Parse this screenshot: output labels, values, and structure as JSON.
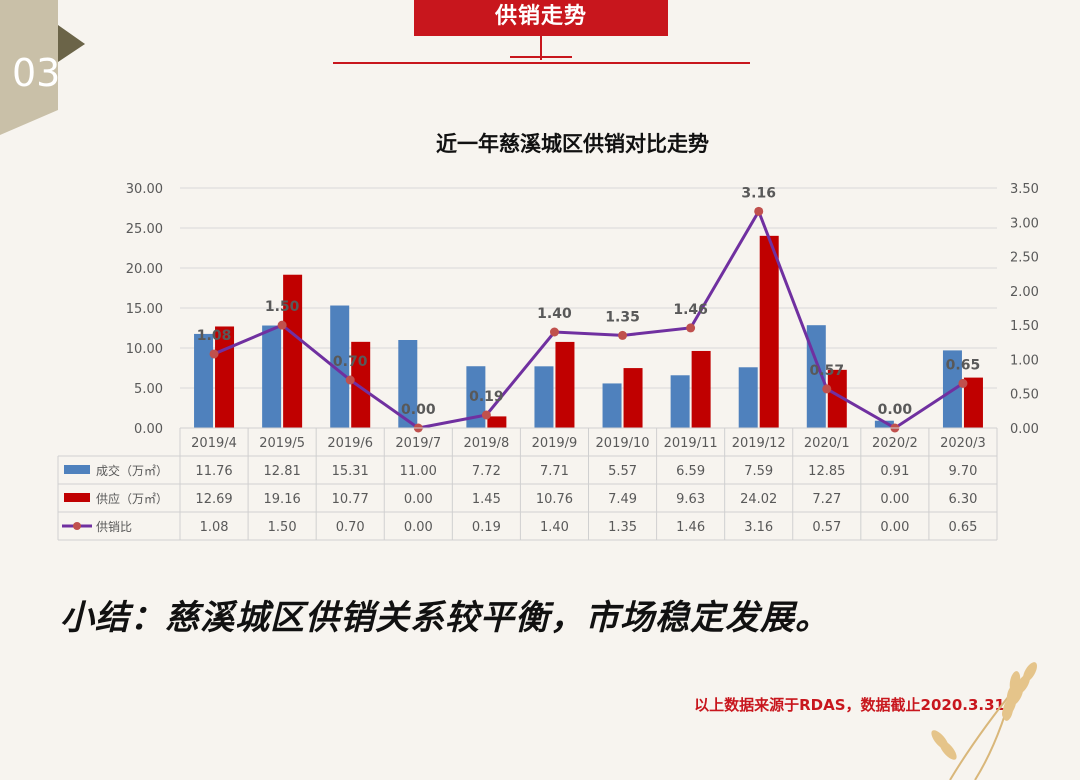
{
  "header": {
    "title": "供销走势",
    "section_number": "03"
  },
  "summary": "小结：慈溪城区供销关系较平衡，市场稳定发展。",
  "source_note": "以上数据来源于RDAS，数据截止2020.3.31",
  "colors": {
    "accent": "#c8161d",
    "deal": "#4f81bd",
    "supply": "#c00000",
    "ratio": "#7030a0",
    "marker": "#c0504d"
  },
  "chart_data": {
    "type": "bar",
    "title": "近一年慈溪城区供销对比走势",
    "categories": [
      "2019/4",
      "2019/5",
      "2019/6",
      "2019/7",
      "2019/8",
      "2019/9",
      "2019/10",
      "2019/11",
      "2019/12",
      "2020/1",
      "2020/2",
      "2020/3"
    ],
    "y_left": {
      "ylim": [
        0,
        30
      ],
      "ticks": [
        "0.00",
        "5.00",
        "10.00",
        "15.00",
        "20.00",
        "25.00",
        "30.00"
      ]
    },
    "y_right": {
      "ylim": [
        0,
        3.5
      ],
      "ticks": [
        "0.00",
        "0.50",
        "1.00",
        "1.50",
        "2.00",
        "2.50",
        "3.00",
        "3.50"
      ]
    },
    "series": [
      {
        "name": "成交（万㎡）",
        "kind": "bar",
        "axis": "left",
        "values": [
          11.76,
          12.81,
          15.31,
          11.0,
          7.72,
          7.71,
          5.57,
          6.59,
          7.59,
          12.85,
          0.91,
          9.7
        ],
        "labels": [
          "11.76",
          "12.81",
          "15.31",
          "11.00",
          "7.72",
          "7.71",
          "5.57",
          "6.59",
          "7.59",
          "12.85",
          "0.91",
          "9.70"
        ]
      },
      {
        "name": "供应（万㎡）",
        "kind": "bar",
        "axis": "left",
        "values": [
          12.69,
          19.16,
          10.77,
          0.0,
          1.45,
          10.76,
          7.49,
          9.63,
          24.02,
          7.27,
          0.0,
          6.3
        ],
        "labels": [
          "12.69",
          "19.16",
          "10.77",
          "0.00",
          "1.45",
          "10.76",
          "7.49",
          "9.63",
          "24.02",
          "7.27",
          "0.00",
          "6.30"
        ]
      },
      {
        "name": "供销比",
        "kind": "line",
        "axis": "right",
        "values": [
          1.08,
          1.5,
          0.7,
          0.0,
          0.19,
          1.4,
          1.35,
          1.46,
          3.16,
          0.57,
          0.0,
          0.65
        ],
        "labels": [
          "1.08",
          "1.50",
          "0.70",
          "0.00",
          "0.19",
          "1.40",
          "1.35",
          "1.46",
          "3.16",
          "0.57",
          "0.00",
          "0.65"
        ]
      }
    ],
    "grid": true,
    "legend": "data-table"
  }
}
